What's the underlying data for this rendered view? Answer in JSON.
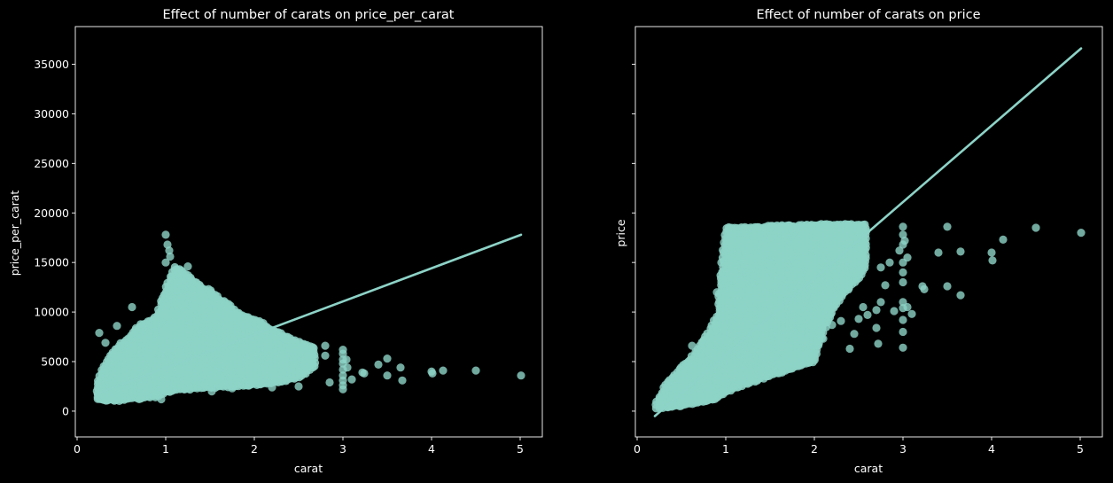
{
  "colors": {
    "background": "#000000",
    "axes": "#ffffff",
    "points": "#8dd3c7",
    "regression_line": "#8dd3c7"
  },
  "chart_data": [
    {
      "type": "scatter",
      "title": "Effect of number of carats on price_per_carat",
      "xlabel": "carat",
      "ylabel": "price_per_carat",
      "xlim": [
        -0.02,
        5.25
      ],
      "ylim": [
        -2600,
        38800
      ],
      "xticks": [
        0,
        1,
        2,
        3,
        4,
        5
      ],
      "yticks": [
        0,
        5000,
        10000,
        15000,
        20000,
        25000,
        30000,
        35000
      ],
      "regression_line": {
        "x": [
          0.2,
          5.01
        ],
        "y": [
          1700,
          17800
        ]
      },
      "dense_regions": [
        {
          "x": 0.23,
          "ymin": 1200,
          "ymax": 3000
        },
        {
          "x": 0.3,
          "ymin": 1100,
          "ymax": 4600
        },
        {
          "x": 0.4,
          "ymin": 1100,
          "ymax": 6000
        },
        {
          "x": 0.5,
          "ymin": 1100,
          "ymax": 6800
        },
        {
          "x": 0.6,
          "ymin": 1300,
          "ymax": 7600
        },
        {
          "x": 0.7,
          "ymin": 1300,
          "ymax": 8600
        },
        {
          "x": 0.8,
          "ymin": 1400,
          "ymax": 9000
        },
        {
          "x": 0.9,
          "ymin": 1500,
          "ymax": 9600
        },
        {
          "x": 1.0,
          "ymin": 1900,
          "ymax": 12500
        },
        {
          "x": 1.1,
          "ymin": 2100,
          "ymax": 14500
        },
        {
          "x": 1.2,
          "ymin": 2200,
          "ymax": 14000
        },
        {
          "x": 1.3,
          "ymin": 2300,
          "ymax": 13300
        },
        {
          "x": 1.4,
          "ymin": 2400,
          "ymax": 12500
        },
        {
          "x": 1.5,
          "ymin": 2400,
          "ymax": 12200
        },
        {
          "x": 1.6,
          "ymin": 2500,
          "ymax": 11300
        },
        {
          "x": 1.7,
          "ymin": 2500,
          "ymax": 10800
        },
        {
          "x": 1.8,
          "ymin": 2600,
          "ymax": 10000
        },
        {
          "x": 1.9,
          "ymin": 2600,
          "ymax": 9500
        },
        {
          "x": 2.0,
          "ymin": 2700,
          "ymax": 9200
        },
        {
          "x": 2.1,
          "ymin": 2800,
          "ymax": 8800
        },
        {
          "x": 2.2,
          "ymin": 2900,
          "ymax": 8200
        },
        {
          "x": 2.3,
          "ymin": 3000,
          "ymax": 7800
        },
        {
          "x": 2.4,
          "ymin": 3200,
          "ymax": 7300
        },
        {
          "x": 2.5,
          "ymin": 3500,
          "ymax": 6900
        },
        {
          "x": 2.6,
          "ymin": 4000,
          "ymax": 6600
        },
        {
          "x": 2.7,
          "ymin": 4800,
          "ymax": 6300
        }
      ],
      "points": [
        [
          0.25,
          7900
        ],
        [
          0.32,
          6900
        ],
        [
          0.45,
          8600
        ],
        [
          0.62,
          10500
        ],
        [
          1.0,
          17800
        ],
        [
          1.02,
          16800
        ],
        [
          1.04,
          16200
        ],
        [
          1.0,
          15000
        ],
        [
          1.05,
          15600
        ],
        [
          1.25,
          14600
        ],
        [
          1.5,
          11800
        ],
        [
          0.95,
          1200
        ],
        [
          1.52,
          2000
        ],
        [
          1.75,
          2300
        ],
        [
          2.2,
          2400
        ],
        [
          2.5,
          2500
        ],
        [
          2.8,
          6600
        ],
        [
          2.8,
          5600
        ],
        [
          2.85,
          2900
        ],
        [
          3.0,
          6200
        ],
        [
          3.0,
          5800
        ],
        [
          3.0,
          5200
        ],
        [
          3.0,
          4800
        ],
        [
          3.0,
          4200
        ],
        [
          3.0,
          3600
        ],
        [
          3.0,
          3100
        ],
        [
          3.0,
          2600
        ],
        [
          3.0,
          2200
        ],
        [
          3.04,
          5200
        ],
        [
          3.05,
          4400
        ],
        [
          3.1,
          3200
        ],
        [
          3.22,
          3900
        ],
        [
          3.24,
          3800
        ],
        [
          3.4,
          4700
        ],
        [
          3.5,
          5300
        ],
        [
          3.5,
          3600
        ],
        [
          3.65,
          4400
        ],
        [
          3.67,
          3100
        ],
        [
          4.0,
          4000
        ],
        [
          4.01,
          3800
        ],
        [
          4.13,
          4100
        ],
        [
          4.5,
          4100
        ],
        [
          5.01,
          3600
        ]
      ]
    },
    {
      "type": "scatter",
      "title": "Effect of number of carats on price",
      "xlabel": "carat",
      "ylabel": "price",
      "xlim": [
        -0.02,
        5.25
      ],
      "ylim": [
        -2600,
        38800
      ],
      "xticks": [
        0,
        1,
        2,
        3,
        4,
        5
      ],
      "yticks": [
        0,
        5000,
        10000,
        15000,
        20000,
        25000,
        30000,
        35000
      ],
      "regression_line": {
        "x": [
          0.2,
          5.01
        ],
        "y": [
          -500,
          36600
        ]
      },
      "dense_regions": [
        {
          "x": 0.22,
          "ymin": 350,
          "ymax": 1000
        },
        {
          "x": 0.3,
          "ymin": 350,
          "ymax": 2300
        },
        {
          "x": 0.4,
          "ymin": 450,
          "ymax": 3400
        },
        {
          "x": 0.5,
          "ymin": 600,
          "ymax": 4400
        },
        {
          "x": 0.6,
          "ymin": 750,
          "ymax": 5200
        },
        {
          "x": 0.7,
          "ymin": 900,
          "ymax": 6600
        },
        {
          "x": 0.8,
          "ymin": 1100,
          "ymax": 7800
        },
        {
          "x": 0.9,
          "ymin": 1300,
          "ymax": 9600
        },
        {
          "x": 1.0,
          "ymin": 1900,
          "ymax": 18500
        },
        {
          "x": 1.1,
          "ymin": 2300,
          "ymax": 18500
        },
        {
          "x": 1.2,
          "ymin": 2700,
          "ymax": 18500
        },
        {
          "x": 1.3,
          "ymin": 3000,
          "ymax": 18500
        },
        {
          "x": 1.4,
          "ymin": 3300,
          "ymax": 18500
        },
        {
          "x": 1.5,
          "ymin": 3600,
          "ymax": 18700
        },
        {
          "x": 1.6,
          "ymin": 3900,
          "ymax": 18700
        },
        {
          "x": 1.7,
          "ymin": 4200,
          "ymax": 18700
        },
        {
          "x": 1.8,
          "ymin": 4500,
          "ymax": 18700
        },
        {
          "x": 1.9,
          "ymin": 4800,
          "ymax": 18700
        },
        {
          "x": 2.0,
          "ymin": 5100,
          "ymax": 18800
        },
        {
          "x": 2.1,
          "ymin": 8000,
          "ymax": 18800
        },
        {
          "x": 2.2,
          "ymin": 10000,
          "ymax": 18800
        },
        {
          "x": 2.3,
          "ymin": 11500,
          "ymax": 18800
        },
        {
          "x": 2.4,
          "ymin": 12500,
          "ymax": 18800
        },
        {
          "x": 2.5,
          "ymin": 13500,
          "ymax": 18800
        },
        {
          "x": 2.6,
          "ymin": 14800,
          "ymax": 18800
        }
      ],
      "points": [
        [
          0.62,
          6600
        ],
        [
          0.9,
          12000
        ],
        [
          0.95,
          15000
        ],
        [
          0.98,
          17000
        ],
        [
          2.02,
          6900
        ],
        [
          2.05,
          8000
        ],
        [
          2.1,
          7300
        ],
        [
          2.2,
          8700
        ],
        [
          2.3,
          9100
        ],
        [
          2.4,
          6300
        ],
        [
          2.45,
          7800
        ],
        [
          2.5,
          9300
        ],
        [
          2.55,
          10500
        ],
        [
          2.6,
          9700
        ],
        [
          2.7,
          10200
        ],
        [
          2.75,
          11000
        ],
        [
          2.7,
          8400
        ],
        [
          2.72,
          6800
        ],
        [
          2.75,
          14500
        ],
        [
          2.8,
          12700
        ],
        [
          2.85,
          15000
        ],
        [
          2.9,
          10100
        ],
        [
          2.96,
          16200
        ],
        [
          3.0,
          18600
        ],
        [
          3.0,
          17800
        ],
        [
          3.0,
          16800
        ],
        [
          3.0,
          15000
        ],
        [
          3.0,
          14000
        ],
        [
          3.0,
          13000
        ],
        [
          3.0,
          11000
        ],
        [
          3.0,
          10400
        ],
        [
          3.0,
          9200
        ],
        [
          3.0,
          8000
        ],
        [
          3.0,
          6400
        ],
        [
          3.02,
          17200
        ],
        [
          3.05,
          15500
        ],
        [
          3.05,
          10500
        ],
        [
          3.1,
          9800
        ],
        [
          3.22,
          12600
        ],
        [
          3.24,
          12300
        ],
        [
          3.4,
          16000
        ],
        [
          3.5,
          18600
        ],
        [
          3.5,
          12600
        ],
        [
          3.65,
          16100
        ],
        [
          3.65,
          11700
        ],
        [
          4.0,
          16000
        ],
        [
          4.01,
          15200
        ],
        [
          4.13,
          17300
        ],
        [
          4.5,
          18500
        ],
        [
          5.01,
          18000
        ]
      ]
    }
  ]
}
